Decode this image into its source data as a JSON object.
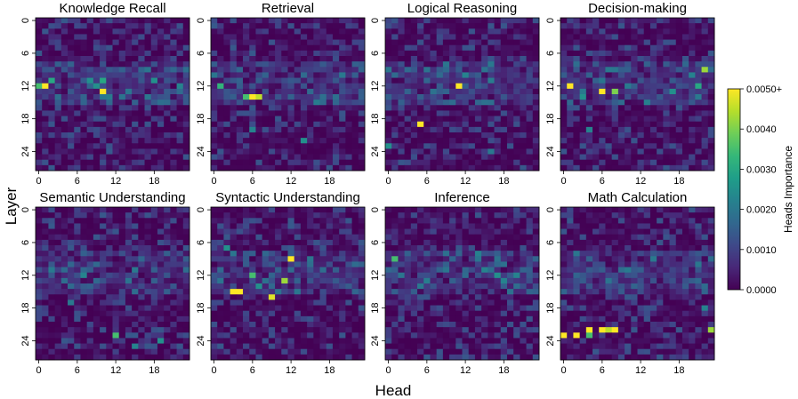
{
  "chart_data": {
    "type": "heatmap",
    "xlabel": "Head",
    "ylabel": "Layer",
    "n_heads": 24,
    "n_layers": 28,
    "x_ticks": [
      0,
      6,
      12,
      18
    ],
    "y_ticks": [
      0,
      6,
      12,
      18,
      24
    ],
    "x_tick_labels": [
      "0",
      "6",
      "12",
      "18"
    ],
    "y_tick_labels": [
      "0",
      "6",
      "12",
      "18",
      "24"
    ],
    "colorbar": {
      "label": "Heads Importance",
      "range": [
        0.0,
        0.005
      ],
      "tick_labels": [
        "0.0000",
        "0.0010",
        "0.0020",
        "0.0030",
        "0.0040",
        "0.0050+"
      ],
      "colormap": [
        "#440154",
        "#482878",
        "#3e4989",
        "#31688e",
        "#26828e",
        "#1f9e89",
        "#35b779",
        "#6ece58",
        "#b5de2b",
        "#fde725"
      ]
    },
    "panels": [
      {
        "title": "Knowledge Recall",
        "seed": 11,
        "hot": [
          [
            12,
            1,
            1.0
          ],
          [
            12,
            0,
            0.7
          ],
          [
            13,
            10,
            1.0
          ],
          [
            11,
            2,
            0.6
          ],
          [
            11,
            10,
            0.6
          ],
          [
            11,
            8,
            0.5
          ],
          [
            12,
            9,
            0.5
          ],
          [
            11,
            18,
            0.5
          ],
          [
            12,
            22,
            0.45
          ]
        ]
      },
      {
        "title": "Retrieval",
        "seed": 23,
        "hot": [
          [
            14,
            6,
            1.0
          ],
          [
            14,
            7,
            0.9
          ],
          [
            14,
            5,
            0.7
          ],
          [
            12,
            1,
            0.65
          ],
          [
            22,
            14,
            0.5
          ],
          [
            20,
            6,
            0.45
          ],
          [
            10,
            20,
            0.4
          ]
        ]
      },
      {
        "title": "Logical Reasoning",
        "seed": 37,
        "hot": [
          [
            12,
            11,
            1.0
          ],
          [
            19,
            5,
            1.0
          ],
          [
            23,
            0,
            0.5
          ],
          [
            10,
            12,
            0.45
          ],
          [
            24,
            16,
            0.4
          ],
          [
            8,
            16,
            0.4
          ]
        ]
      },
      {
        "title": "Decision-making",
        "seed": 41,
        "hot": [
          [
            12,
            1,
            1.0
          ],
          [
            13,
            6,
            1.0
          ],
          [
            13,
            8,
            0.8
          ],
          [
            12,
            21,
            0.6
          ],
          [
            9,
            22,
            0.85
          ],
          [
            13,
            17,
            0.5
          ],
          [
            14,
            3,
            0.5
          ],
          [
            20,
            4,
            0.45
          ]
        ]
      },
      {
        "title": "Semantic Understanding",
        "seed": 53,
        "hot": [
          [
            23,
            12,
            0.7
          ],
          [
            24,
            19,
            0.5
          ],
          [
            25,
            15,
            0.45
          ],
          [
            12,
            7,
            0.45
          ],
          [
            17,
            5,
            0.4
          ]
        ]
      },
      {
        "title": "Syntactic Understanding",
        "seed": 67,
        "hot": [
          [
            15,
            3,
            1.0
          ],
          [
            15,
            4,
            1.0
          ],
          [
            9,
            12,
            1.0
          ],
          [
            16,
            9,
            0.95
          ],
          [
            13,
            11,
            0.85
          ],
          [
            12,
            6,
            0.7
          ],
          [
            14,
            7,
            0.5
          ],
          [
            7,
            2,
            0.5
          ]
        ]
      },
      {
        "title": "Inference",
        "seed": 71,
        "hot": [
          [
            9,
            1,
            0.7
          ],
          [
            12,
            17,
            0.5
          ],
          [
            13,
            18,
            0.45
          ],
          [
            11,
            15,
            0.45
          ],
          [
            14,
            5,
            0.4
          ]
        ]
      },
      {
        "title": "Math Calculation",
        "seed": 89,
        "hot": [
          [
            23,
            0,
            1.0
          ],
          [
            23,
            2,
            1.0
          ],
          [
            22,
            4,
            1.0
          ],
          [
            22,
            6,
            1.0
          ],
          [
            22,
            8,
            1.0
          ],
          [
            22,
            7,
            0.9
          ],
          [
            23,
            4,
            0.7
          ],
          [
            22,
            23,
            0.85
          ],
          [
            18,
            22,
            0.45
          ]
        ]
      }
    ]
  }
}
